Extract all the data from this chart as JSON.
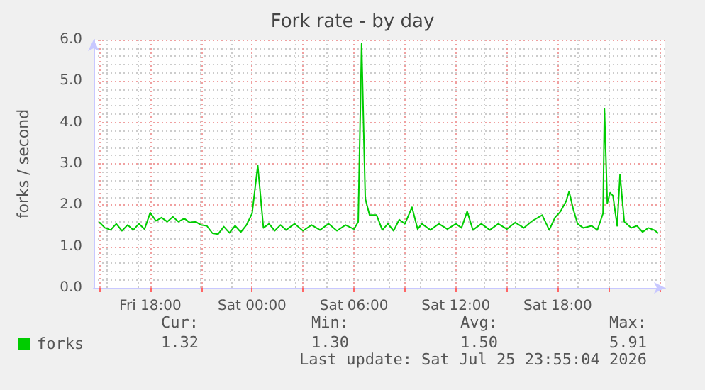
{
  "chart_data": {
    "type": "line",
    "title": "Fork rate - by day",
    "ylabel": "forks / second",
    "x": [
      "2026-07-24T15:00",
      "2026-07-24T15:20",
      "2026-07-24T15:40",
      "2026-07-24T16:00",
      "2026-07-24T16:20",
      "2026-07-24T16:40",
      "2026-07-24T17:00",
      "2026-07-24T17:20",
      "2026-07-24T17:40",
      "2026-07-24T18:00",
      "2026-07-24T18:20",
      "2026-07-24T18:40",
      "2026-07-24T19:00",
      "2026-07-24T19:20",
      "2026-07-24T19:40",
      "2026-07-24T20:00",
      "2026-07-24T20:20",
      "2026-07-24T20:40",
      "2026-07-24T21:00",
      "2026-07-24T21:20",
      "2026-07-24T21:40",
      "2026-07-24T22:00",
      "2026-07-24T22:20",
      "2026-07-24T22:40",
      "2026-07-24T23:00",
      "2026-07-24T23:20",
      "2026-07-24T23:40",
      "2026-07-25T00:00",
      "2026-07-25T00:20",
      "2026-07-25T00:40",
      "2026-07-25T01:00",
      "2026-07-25T01:20",
      "2026-07-25T01:40",
      "2026-07-25T02:00",
      "2026-07-25T02:30",
      "2026-07-25T03:00",
      "2026-07-25T03:30",
      "2026-07-25T04:00",
      "2026-07-25T04:30",
      "2026-07-25T05:00",
      "2026-07-25T05:30",
      "2026-07-25T06:00",
      "2026-07-25T06:15",
      "2026-07-25T06:27",
      "2026-07-25T06:40",
      "2026-07-25T06:55",
      "2026-07-25T07:20",
      "2026-07-25T07:40",
      "2026-07-25T08:00",
      "2026-07-25T08:20",
      "2026-07-25T08:40",
      "2026-07-25T09:00",
      "2026-07-25T09:25",
      "2026-07-25T09:45",
      "2026-07-25T10:00",
      "2026-07-25T10:30",
      "2026-07-25T11:00",
      "2026-07-25T11:30",
      "2026-07-25T12:00",
      "2026-07-25T12:20",
      "2026-07-25T12:40",
      "2026-07-25T13:00",
      "2026-07-25T13:30",
      "2026-07-25T14:00",
      "2026-07-25T14:30",
      "2026-07-25T15:00",
      "2026-07-25T15:30",
      "2026-07-25T16:00",
      "2026-07-25T16:30",
      "2026-07-25T17:05",
      "2026-07-25T17:30",
      "2026-07-25T17:50",
      "2026-07-25T18:10",
      "2026-07-25T18:30",
      "2026-07-25T18:40",
      "2026-07-25T18:55",
      "2026-07-25T19:10",
      "2026-07-25T19:30",
      "2026-07-25T20:00",
      "2026-07-25T20:20",
      "2026-07-25T20:40",
      "2026-07-25T20:45",
      "2026-07-25T20:55",
      "2026-07-25T21:05",
      "2026-07-25T21:15",
      "2026-07-25T21:30",
      "2026-07-25T21:40",
      "2026-07-25T21:55",
      "2026-07-25T22:20",
      "2026-07-25T22:40",
      "2026-07-25T23:00",
      "2026-07-25T23:20",
      "2026-07-25T23:40",
      "2026-07-25T23:55"
    ],
    "series": [
      {
        "name": "forks",
        "color": "#00cc00",
        "values": [
          1.59,
          1.45,
          1.4,
          1.55,
          1.38,
          1.52,
          1.4,
          1.55,
          1.42,
          1.82,
          1.62,
          1.7,
          1.6,
          1.72,
          1.6,
          1.68,
          1.58,
          1.6,
          1.52,
          1.5,
          1.32,
          1.3,
          1.48,
          1.33,
          1.5,
          1.35,
          1.52,
          1.8,
          2.96,
          1.45,
          1.55,
          1.38,
          1.52,
          1.4,
          1.55,
          1.38,
          1.52,
          1.4,
          1.55,
          1.38,
          1.52,
          1.42,
          1.6,
          5.9,
          2.16,
          1.76,
          1.76,
          1.4,
          1.55,
          1.38,
          1.65,
          1.55,
          1.95,
          1.42,
          1.55,
          1.4,
          1.55,
          1.42,
          1.55,
          1.45,
          1.85,
          1.4,
          1.55,
          1.4,
          1.55,
          1.42,
          1.58,
          1.45,
          1.62,
          1.76,
          1.4,
          1.7,
          1.85,
          2.1,
          2.33,
          1.9,
          1.55,
          1.45,
          1.5,
          1.4,
          1.8,
          4.33,
          2.05,
          2.3,
          2.23,
          1.5,
          2.74,
          1.6,
          1.45,
          1.5,
          1.35,
          1.45,
          1.4,
          1.32
        ]
      }
    ],
    "xlim": [
      "2026-07-24T14:40",
      "2026-07-26T00:20"
    ],
    "xticks": [
      {
        "value": "2026-07-24T15:00",
        "label": null
      },
      {
        "value": "2026-07-24T18:00",
        "label": "Fri 18:00"
      },
      {
        "value": "2026-07-24T21:00",
        "label": null
      },
      {
        "value": "2026-07-25T00:00",
        "label": "Sat 00:00"
      },
      {
        "value": "2026-07-25T03:00",
        "label": null
      },
      {
        "value": "2026-07-25T06:00",
        "label": "Sat 06:00"
      },
      {
        "value": "2026-07-25T09:00",
        "label": null
      },
      {
        "value": "2026-07-25T12:00",
        "label": "Sat 12:00"
      },
      {
        "value": "2026-07-25T15:00",
        "label": null
      },
      {
        "value": "2026-07-25T18:00",
        "label": "Sat 18:00"
      },
      {
        "value": "2026-07-25T21:00",
        "label": null
      },
      {
        "value": "2026-07-26T00:00",
        "label": null
      }
    ],
    "ylim": [
      0,
      6
    ],
    "yticks": [
      {
        "value": 0,
        "label": "0.0"
      },
      {
        "value": 1,
        "label": "1.0"
      },
      {
        "value": 2,
        "label": "2.0"
      },
      {
        "value": 3,
        "label": "3.0"
      },
      {
        "value": 4,
        "label": "4.0"
      },
      {
        "value": 5,
        "label": "5.0"
      },
      {
        "value": 6,
        "label": "6.0"
      }
    ],
    "grid": true,
    "legend": "bottom left",
    "marker": "none",
    "line_style": "solid",
    "annotations": [
      "Cur:",
      "1.32",
      "Min:",
      "1.30",
      "Avg:",
      "1.50",
      "Max:",
      "5.91",
      "Last update: Sat Jul 25 23:55:04 2026"
    ]
  }
}
